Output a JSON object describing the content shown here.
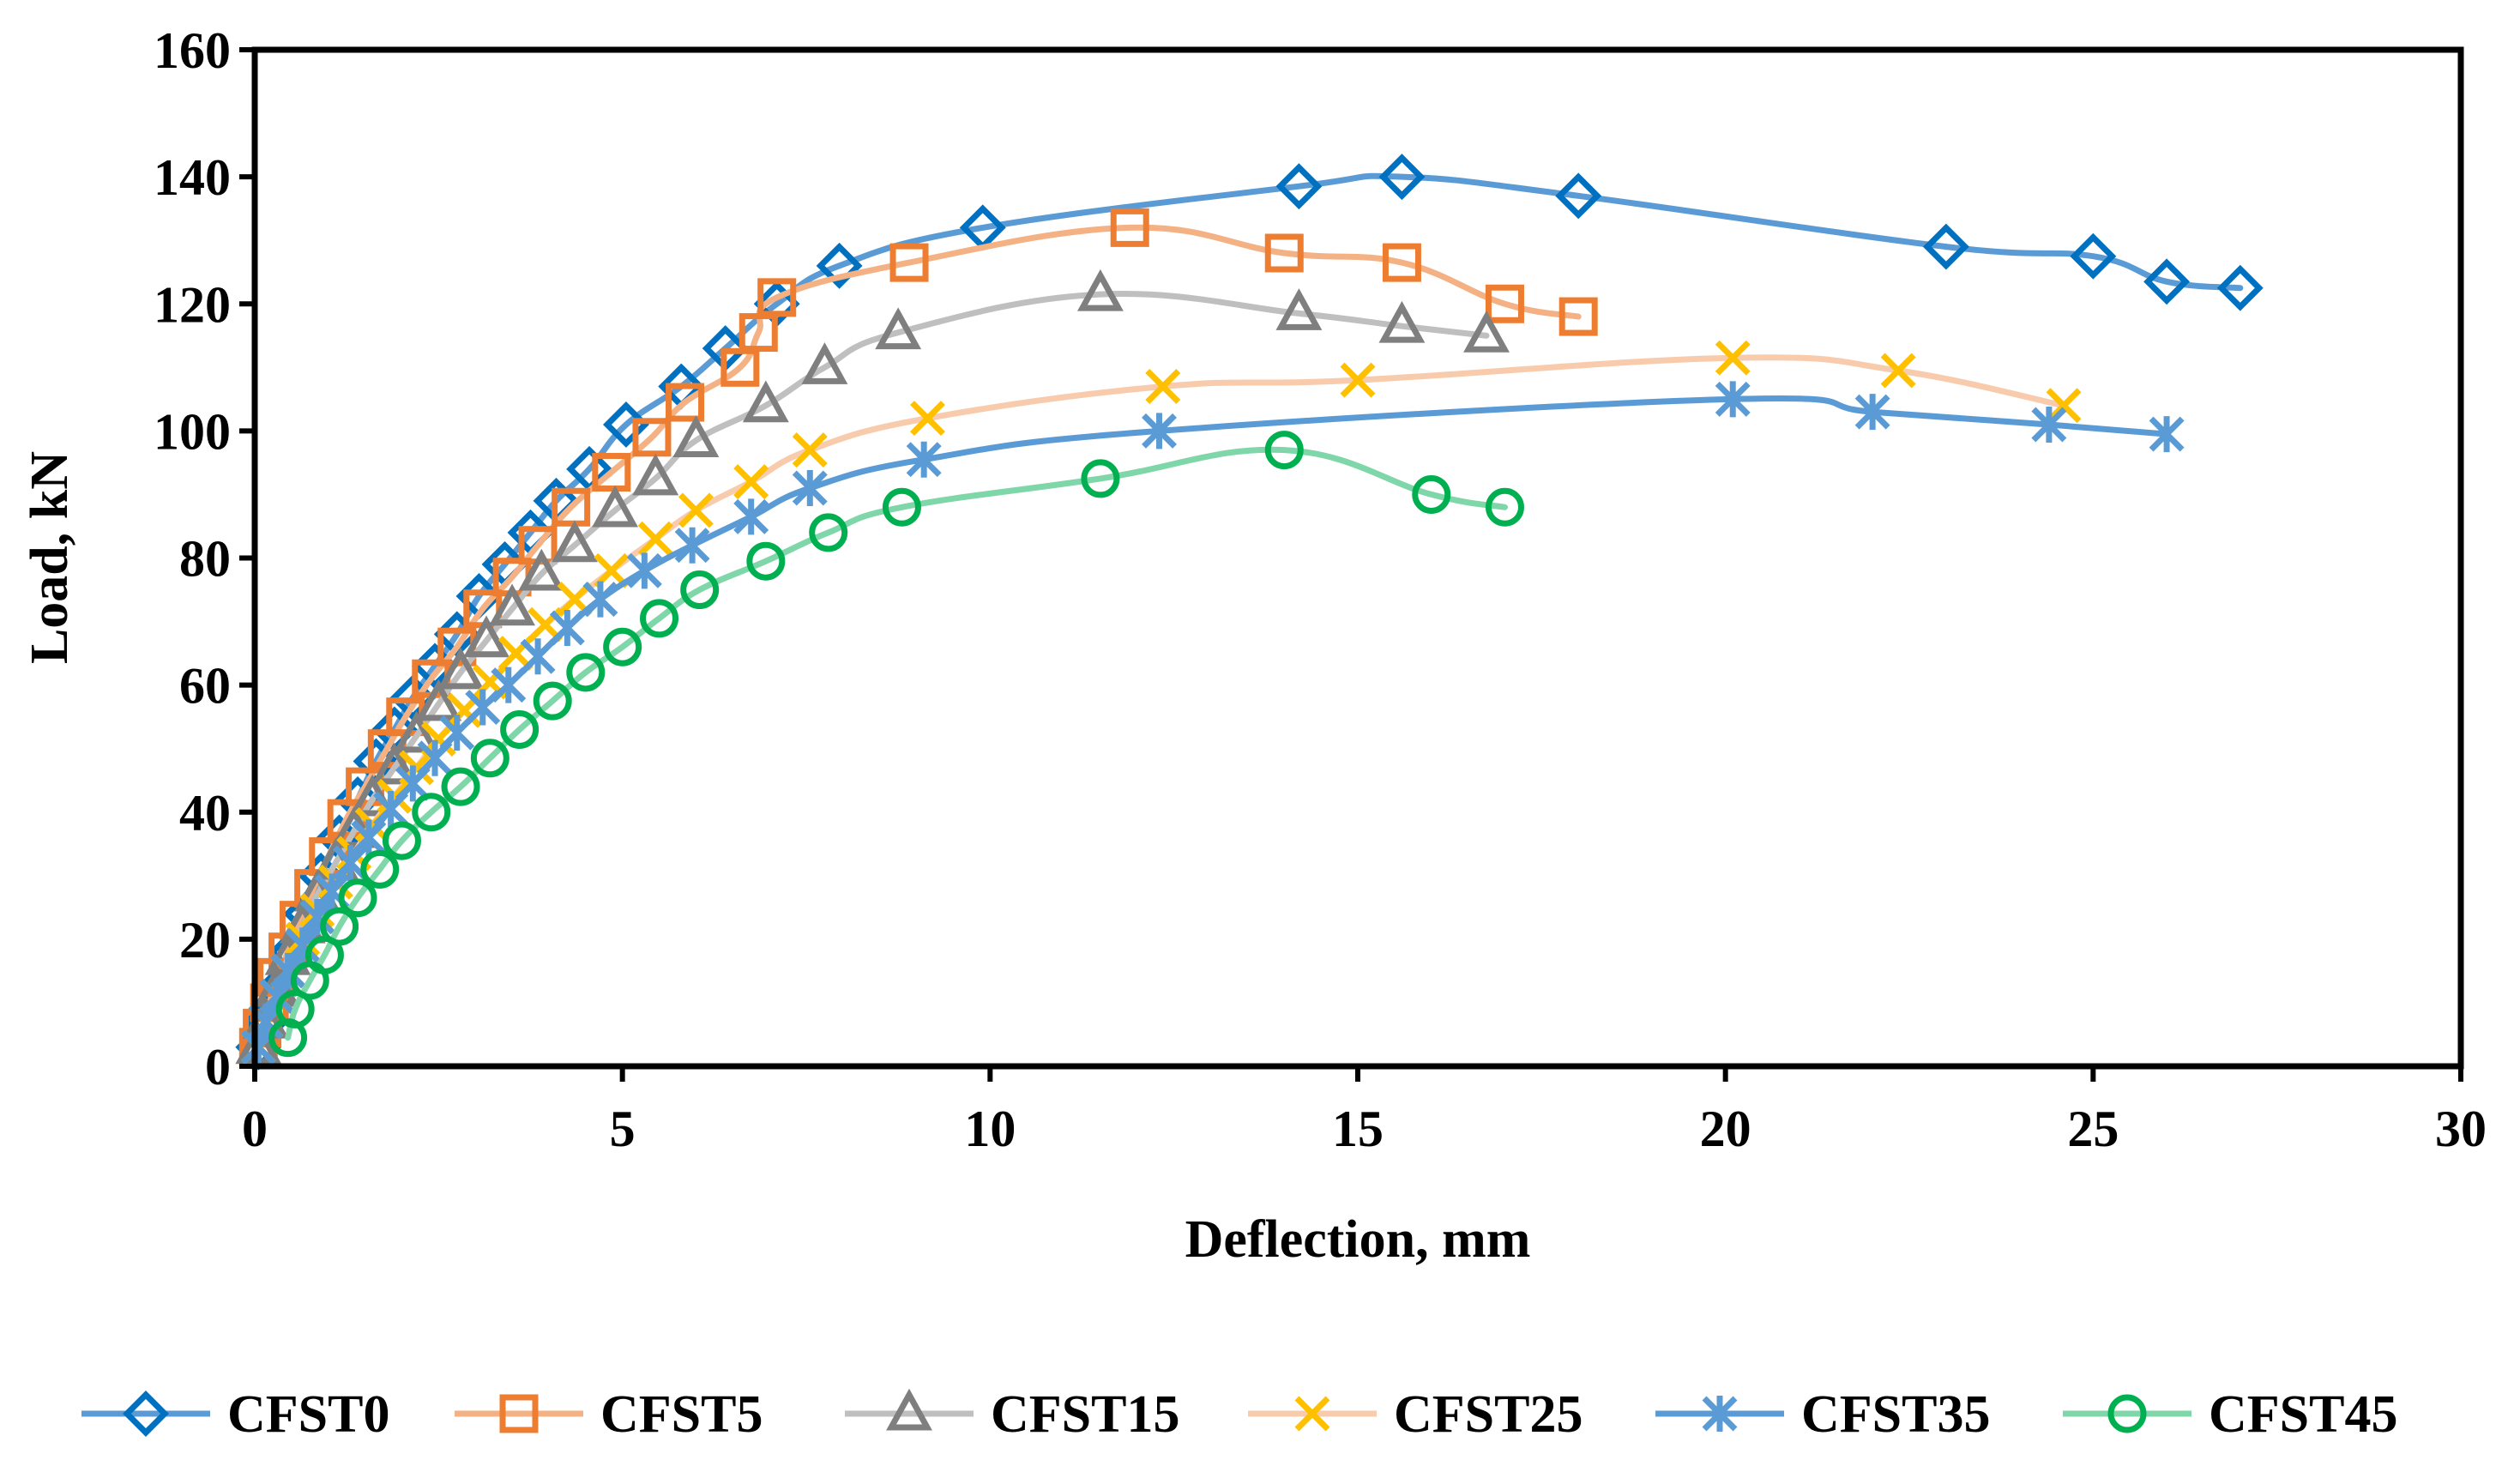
{
  "chart_data": {
    "type": "line",
    "title": "",
    "xlabel": "Deflection, mm",
    "ylabel": "Load, kN",
    "xlim": [
      0,
      30
    ],
    "ylim": [
      0,
      160
    ],
    "xticks": [
      0,
      5,
      10,
      15,
      20,
      25,
      30
    ],
    "yticks": [
      0,
      20,
      40,
      60,
      80,
      100,
      120,
      140,
      160
    ],
    "grid": false,
    "legend_position": "bottom",
    "series": [
      {
        "name": "CFST0",
        "color": "#5B9BD5",
        "marker_color": "#0070C0",
        "marker": "diamond",
        "points": [
          [
            0.05,
            3
          ],
          [
            0.15,
            7
          ],
          [
            0.3,
            12
          ],
          [
            0.5,
            18
          ],
          [
            0.7,
            24
          ],
          [
            0.9,
            30
          ],
          [
            1.15,
            36
          ],
          [
            1.4,
            42
          ],
          [
            1.65,
            48
          ],
          [
            1.9,
            53
          ],
          [
            2.15,
            58
          ],
          [
            2.45,
            63
          ],
          [
            2.75,
            68
          ],
          [
            3.05,
            74
          ],
          [
            3.4,
            79
          ],
          [
            3.75,
            84
          ],
          [
            4.1,
            89
          ],
          [
            4.55,
            94
          ],
          [
            5.05,
            101
          ],
          [
            5.8,
            107
          ],
          [
            6.4,
            113
          ],
          [
            7.1,
            120
          ],
          [
            7.95,
            126
          ],
          [
            9.9,
            132
          ],
          [
            14.2,
            138.5
          ],
          [
            15.6,
            140
          ],
          [
            18,
            137
          ],
          [
            23,
            129
          ],
          [
            25,
            127.5
          ],
          [
            26,
            123.5
          ],
          [
            27,
            122.5
          ]
        ]
      },
      {
        "name": "CFST5",
        "color": "#F4B183",
        "marker_color": "#ED7D31",
        "marker": "square",
        "points": [
          [
            0.05,
            3
          ],
          [
            0.1,
            6
          ],
          [
            0.2,
            10
          ],
          [
            0.3,
            14
          ],
          [
            0.45,
            18
          ],
          [
            0.6,
            23
          ],
          [
            0.8,
            28
          ],
          [
            1.0,
            33
          ],
          [
            1.25,
            39
          ],
          [
            1.5,
            44
          ],
          [
            1.8,
            50
          ],
          [
            2.05,
            55
          ],
          [
            2.4,
            61
          ],
          [
            2.75,
            66
          ],
          [
            3.1,
            72
          ],
          [
            3.5,
            77
          ],
          [
            3.85,
            82
          ],
          [
            4.3,
            88
          ],
          [
            4.85,
            93.5
          ],
          [
            5.4,
            99
          ],
          [
            5.85,
            104.5
          ],
          [
            6.6,
            110
          ],
          [
            6.85,
            115.5
          ],
          [
            7.1,
            121
          ],
          [
            8.9,
            126.5
          ],
          [
            11.9,
            132
          ],
          [
            14,
            128
          ],
          [
            15.6,
            126.5
          ],
          [
            17,
            120
          ],
          [
            18,
            118
          ]
        ]
      },
      {
        "name": "CFST15",
        "color": "#BFBFBF",
        "marker_color": "#7F7F7F",
        "marker": "triangle",
        "points": [
          [
            0.05,
            3
          ],
          [
            0.15,
            7
          ],
          [
            0.3,
            12
          ],
          [
            0.45,
            17
          ],
          [
            0.65,
            22
          ],
          [
            0.85,
            27
          ],
          [
            1.1,
            32
          ],
          [
            1.35,
            37
          ],
          [
            1.6,
            42
          ],
          [
            1.9,
            47
          ],
          [
            2.2,
            52
          ],
          [
            2.5,
            57
          ],
          [
            2.8,
            62
          ],
          [
            3.15,
            67
          ],
          [
            3.5,
            72
          ],
          [
            3.9,
            77.5
          ],
          [
            4.35,
            82
          ],
          [
            4.9,
            87.5
          ],
          [
            5.45,
            92.5
          ],
          [
            6.0,
            98.5
          ],
          [
            6.95,
            104
          ],
          [
            7.75,
            110
          ],
          [
            8.75,
            115.5
          ],
          [
            11.5,
            121.5
          ],
          [
            14.2,
            118.5
          ],
          [
            15.6,
            116.5
          ],
          [
            16.75,
            115
          ]
        ]
      },
      {
        "name": "CFST25",
        "color": "#F8CBAD",
        "marker_color": "#FFC000",
        "marker": "x",
        "points": [
          [
            0.05,
            3
          ],
          [
            0.15,
            7
          ],
          [
            0.3,
            11
          ],
          [
            0.45,
            15
          ],
          [
            0.65,
            20
          ],
          [
            0.85,
            24.5
          ],
          [
            1.1,
            29
          ],
          [
            1.35,
            33.5
          ],
          [
            1.6,
            38
          ],
          [
            1.9,
            42.5
          ],
          [
            2.2,
            47
          ],
          [
            2.5,
            51.5
          ],
          [
            2.85,
            56
          ],
          [
            3.2,
            60.5
          ],
          [
            3.55,
            65
          ],
          [
            3.95,
            69.5
          ],
          [
            4.35,
            73.5
          ],
          [
            4.85,
            78
          ],
          [
            5.45,
            83
          ],
          [
            6.0,
            87.5
          ],
          [
            6.75,
            92
          ],
          [
            7.55,
            97
          ],
          [
            9.15,
            102
          ],
          [
            12.35,
            107
          ],
          [
            15,
            108
          ],
          [
            20.1,
            111.5
          ],
          [
            22.35,
            109.5
          ],
          [
            24.6,
            104
          ]
        ]
      },
      {
        "name": "CFST35",
        "color": "#5B9BD5",
        "marker_color": "#5B9BD5",
        "marker": "star",
        "points": [
          [
            0.05,
            3
          ],
          [
            0.15,
            7
          ],
          [
            0.3,
            11
          ],
          [
            0.45,
            15
          ],
          [
            0.65,
            19
          ],
          [
            0.85,
            23.5
          ],
          [
            1.05,
            27.5
          ],
          [
            1.3,
            32
          ],
          [
            1.55,
            36
          ],
          [
            1.85,
            40.5
          ],
          [
            2.15,
            44.5
          ],
          [
            2.45,
            48.5
          ],
          [
            2.75,
            52.5
          ],
          [
            3.1,
            56.5
          ],
          [
            3.45,
            60
          ],
          [
            3.85,
            64.5
          ],
          [
            4.25,
            69
          ],
          [
            4.7,
            73.5
          ],
          [
            5.3,
            78
          ],
          [
            5.95,
            82
          ],
          [
            6.75,
            86.5
          ],
          [
            7.55,
            91
          ],
          [
            9.1,
            95.5
          ],
          [
            12.3,
            100
          ],
          [
            20.1,
            105
          ],
          [
            22,
            103
          ],
          [
            24.4,
            101
          ],
          [
            26,
            99.5
          ]
        ]
      },
      {
        "name": "CFST45",
        "color": "#7FD6A8",
        "marker_color": "#00B050",
        "marker": "circle",
        "points": [
          [
            0.45,
            4.5
          ],
          [
            0.55,
            9
          ],
          [
            0.75,
            13.5
          ],
          [
            0.95,
            17.5
          ],
          [
            1.15,
            22
          ],
          [
            1.4,
            26.5
          ],
          [
            1.7,
            31
          ],
          [
            2.0,
            35.5
          ],
          [
            2.4,
            40
          ],
          [
            2.8,
            44
          ],
          [
            3.2,
            48.5
          ],
          [
            3.6,
            53
          ],
          [
            4.05,
            57.5
          ],
          [
            4.5,
            62
          ],
          [
            5.0,
            66
          ],
          [
            5.5,
            70.5
          ],
          [
            6.05,
            75
          ],
          [
            6.95,
            79.5
          ],
          [
            7.8,
            84
          ],
          [
            8.8,
            88
          ],
          [
            11.5,
            92.5
          ],
          [
            14,
            97
          ],
          [
            16,
            90
          ],
          [
            17,
            88
          ]
        ]
      }
    ]
  }
}
